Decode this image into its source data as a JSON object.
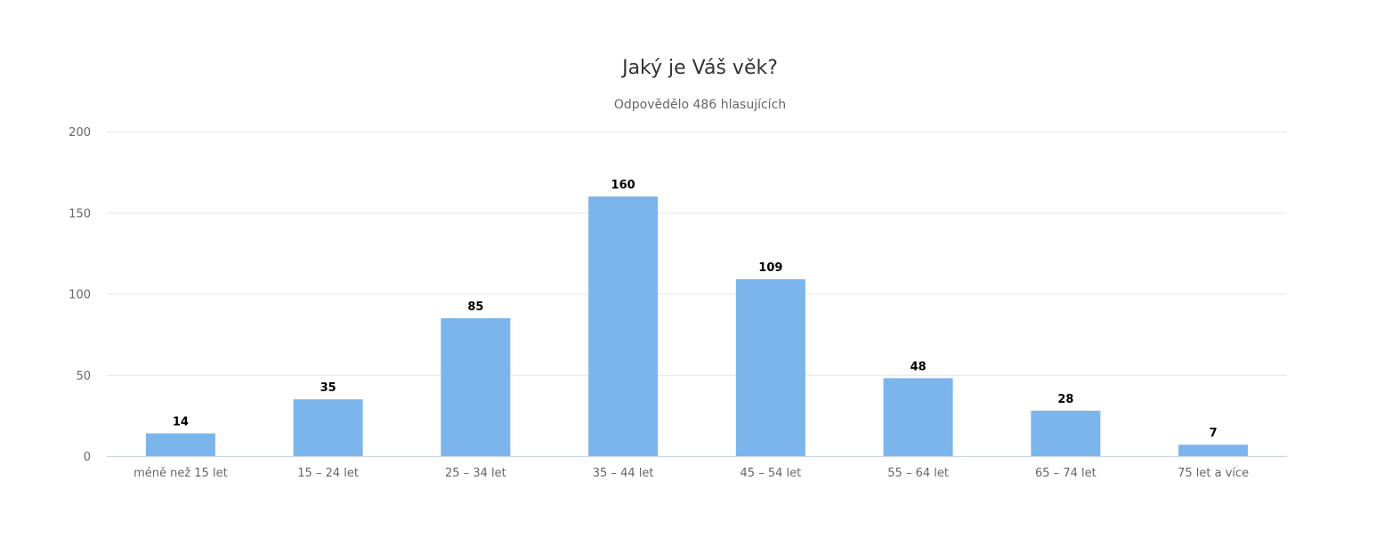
{
  "chart_data": {
    "type": "bar",
    "title": "Jaký je Váš věk?",
    "subtitle": "Odpovědělo 486 hlasujících",
    "xlabel": "",
    "ylabel": "",
    "categories": [
      "méně než 15 let",
      "15 – 24 let",
      "25 – 34 let",
      "35 – 44 let",
      "45 – 54 let",
      "55 – 64 let",
      "65 – 74 let",
      "75 let a více"
    ],
    "values": [
      14,
      35,
      85,
      160,
      109,
      48,
      28,
      7
    ],
    "ylim": [
      0,
      200
    ],
    "yticks": [
      0,
      50,
      100,
      150,
      200
    ],
    "grid": true,
    "legend": "none",
    "colors": {
      "bar": "#7cb5ec",
      "grid": "#e6e6e6",
      "axis": "#ccd6eb"
    }
  }
}
